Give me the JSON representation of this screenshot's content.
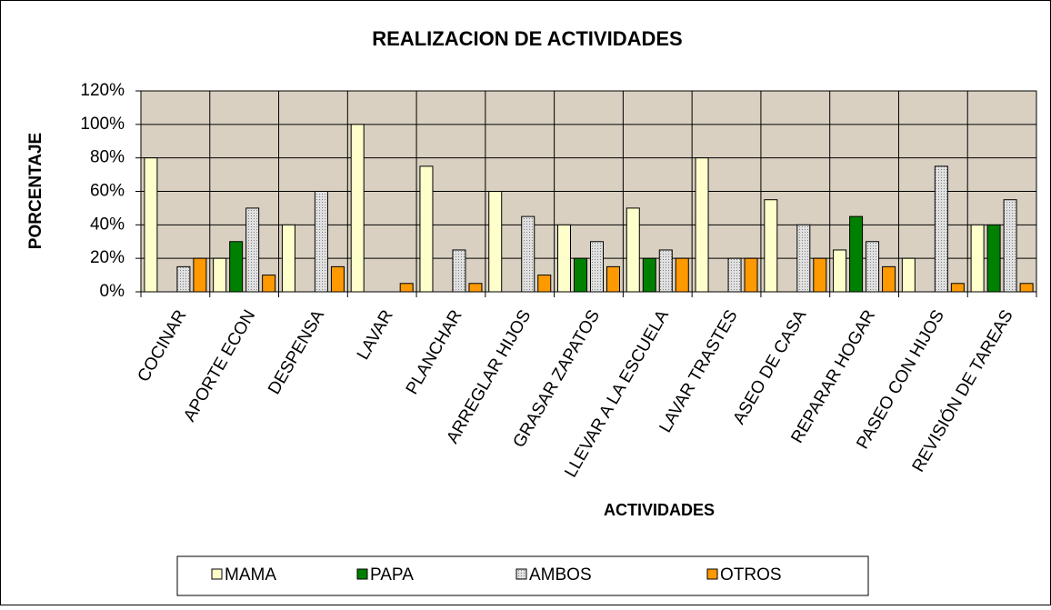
{
  "chart_data": {
    "type": "bar",
    "title": "REALIZACION DE ACTIVIDADES",
    "xlabel": "ACTIVIDADES",
    "ylabel": "PORCENTAJE",
    "categories": [
      "COCINAR",
      "APORTE ECON",
      "DESPENSA",
      "LAVAR",
      "PLANCHAR",
      "ARREGLAR HIJOS",
      "GRASAR ZAPATOS",
      "LLEVAR A LA ESCUELA",
      "LAVAR TRASTES",
      "ASEO DE CASA",
      "REPARAR HOGAR",
      "PASEO CON HIJOS",
      "REVISIÓN DE TAREAS"
    ],
    "series": [
      {
        "name": "MAMA",
        "color": "#ffffcc",
        "values": [
          80,
          20,
          40,
          100,
          75,
          60,
          40,
          50,
          80,
          55,
          25,
          20,
          40
        ]
      },
      {
        "name": "PAPA",
        "color": "#008000",
        "values": [
          0,
          30,
          0,
          0,
          0,
          0,
          20,
          20,
          0,
          0,
          45,
          0,
          40
        ]
      },
      {
        "name": "AMBOS",
        "color": "#c8c8c8",
        "values": [
          15,
          50,
          60,
          0,
          25,
          45,
          30,
          25,
          20,
          40,
          30,
          75,
          55
        ]
      },
      {
        "name": "OTROS",
        "color": "#ff9900",
        "values": [
          20,
          10,
          15,
          5,
          5,
          10,
          15,
          20,
          20,
          20,
          15,
          5,
          5
        ]
      }
    ],
    "ylim": [
      0,
      120
    ],
    "yticks": [
      {
        "value": 0,
        "label": "0%"
      },
      {
        "value": 20,
        "label": "20%"
      },
      {
        "value": 40,
        "label": "40%"
      },
      {
        "value": 60,
        "label": "60%"
      },
      {
        "value": 80,
        "label": "80%"
      },
      {
        "value": 100,
        "label": "100%"
      },
      {
        "value": 120,
        "label": "120%"
      }
    ],
    "grid": true,
    "legend": "bottom"
  }
}
